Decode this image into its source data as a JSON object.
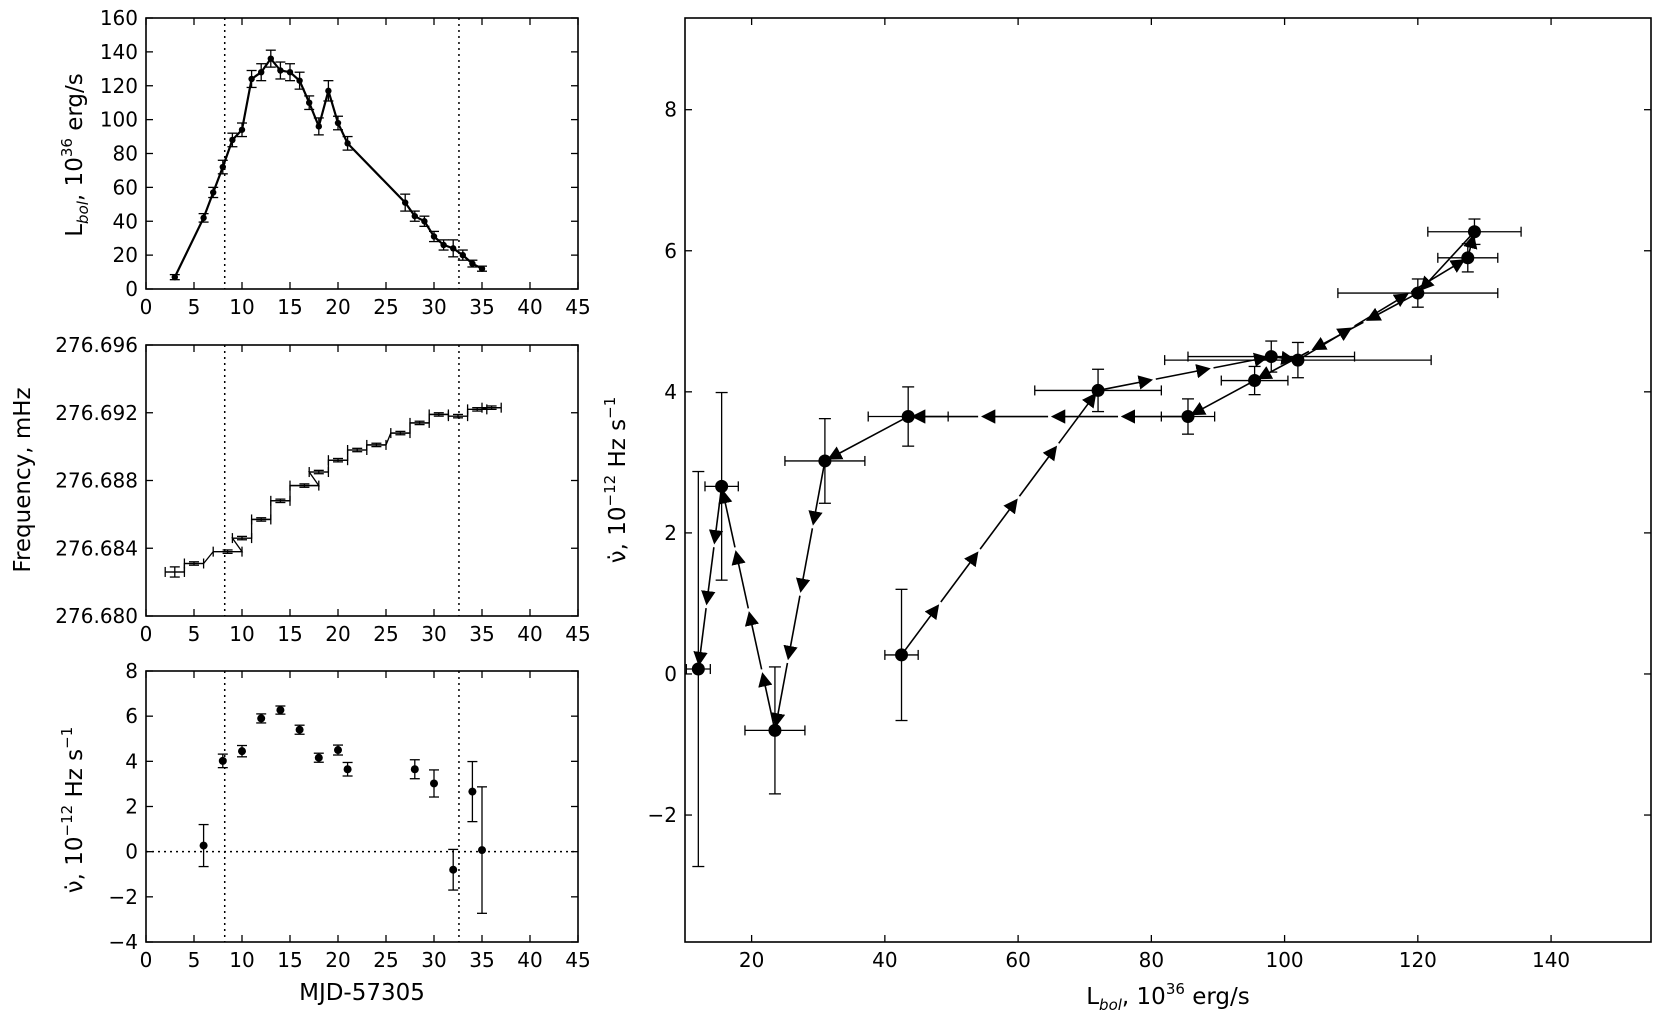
{
  "chart_data": [
    {
      "type": "line",
      "id": "luminosity",
      "xlabel": "",
      "ylabel": "L_bol, 10^36 erg/s",
      "ylabel_parts": {
        "main": "L",
        "sub": "bol",
        "rest": ", 10",
        "sup": "36",
        "tail": " erg/s"
      },
      "xlim": [
        0,
        45
      ],
      "ylim": [
        0,
        160
      ],
      "xticks": [
        0,
        5,
        10,
        15,
        20,
        25,
        30,
        35,
        40,
        45
      ],
      "yticks": [
        0,
        20,
        40,
        60,
        80,
        100,
        120,
        140,
        160
      ],
      "vlines": [
        8.2,
        32.6
      ],
      "x": [
        3,
        6,
        7,
        8,
        9,
        10,
        11,
        12,
        13,
        14,
        15,
        16,
        17,
        18,
        19,
        20,
        21,
        27,
        28,
        29,
        30,
        31,
        32,
        33,
        34,
        35
      ],
      "y": [
        7,
        42,
        57,
        72,
        88,
        94,
        124,
        128,
        136,
        129,
        128,
        123,
        110,
        96,
        117,
        98,
        86,
        51,
        43,
        40,
        31,
        26,
        24,
        20,
        15,
        12
      ],
      "yerr": [
        1.5,
        2.5,
        3,
        4,
        4,
        4,
        5,
        5,
        5,
        5,
        5,
        5,
        4,
        5,
        6,
        4,
        4,
        5,
        3,
        3,
        3,
        3,
        5,
        3,
        2,
        1.5
      ]
    },
    {
      "type": "line",
      "id": "frequency",
      "xlabel": "",
      "ylabel": "Frequency, mHz",
      "xlim": [
        0,
        45
      ],
      "ylim": [
        276.68,
        276.696
      ],
      "xticks": [
        0,
        5,
        10,
        15,
        20,
        25,
        30,
        35,
        40,
        45
      ],
      "yticks": [
        276.68,
        276.684,
        276.688,
        276.692,
        276.696
      ],
      "ytick_labels": [
        "276.680",
        "276.684",
        "276.688",
        "276.692",
        "276.696"
      ],
      "vlines": [
        8.2,
        32.6
      ],
      "x": [
        3,
        5,
        8.5,
        10,
        12,
        14,
        16.5,
        18,
        20,
        22,
        24,
        26.5,
        28.5,
        30.5,
        32.5,
        34.5,
        36
      ],
      "xerr": [
        1,
        1,
        1.5,
        1,
        1,
        1,
        1.5,
        1,
        1,
        1,
        1,
        1,
        1,
        1,
        1,
        1,
        1
      ],
      "y": [
        276.6826,
        276.6831,
        276.6838,
        276.6846,
        276.6857,
        276.6868,
        276.6877,
        276.6885,
        276.6892,
        276.6898,
        276.6901,
        276.6908,
        276.6914,
        276.6919,
        276.6918,
        276.6922,
        276.6923
      ],
      "yerr": [
        0.0003,
        0.0001,
        0.0001,
        0.0001,
        0.0001,
        0.0001,
        0.0001,
        0.0001,
        0.0001,
        0.0001,
        0.0001,
        0.0001,
        0.0001,
        0.0001,
        0.0001,
        0.0001,
        0.0001
      ]
    },
    {
      "type": "scatter",
      "id": "nudot_time",
      "xlabel": "MJD-57305",
      "ylabel": "ν̇, 10^−12 Hz s^−1",
      "ylabel_parts": {
        "main": "ν̇, 10",
        "sup": "−12",
        "rest": " Hz s",
        "sup2": "−1"
      },
      "xlim": [
        0,
        45
      ],
      "ylim": [
        -4,
        8
      ],
      "xticks": [
        0,
        5,
        10,
        15,
        20,
        25,
        30,
        35,
        40,
        45
      ],
      "yticks": [
        -4,
        -2,
        0,
        2,
        4,
        6,
        8
      ],
      "ytick_labels": [
        "−4",
        "−2",
        "0",
        "2",
        "4",
        "6",
        "8"
      ],
      "vlines": [
        8.2,
        32.6
      ],
      "hline": 0,
      "x": [
        6,
        8,
        10,
        12,
        14,
        16,
        18,
        20,
        21,
        28,
        30,
        32,
        34,
        35
      ],
      "y": [
        0.27,
        4.02,
        4.45,
        5.9,
        6.27,
        5.4,
        4.16,
        4.5,
        3.65,
        3.65,
        3.02,
        -0.8,
        2.66,
        0.07
      ],
      "yerr": [
        0.93,
        0.3,
        0.25,
        0.2,
        0.18,
        0.2,
        0.2,
        0.22,
        0.3,
        0.42,
        0.6,
        0.9,
        1.33,
        2.8
      ]
    },
    {
      "type": "scatter",
      "id": "nudot_lbol",
      "xlabel": "L_bol, 10^36 erg/s",
      "xlabel_parts": {
        "main": "L",
        "sub": "bol",
        "rest": ", 10",
        "sup": "36",
        "tail": " erg/s"
      },
      "ylabel": "ν̇, 10^−12 Hz s^−1",
      "ylabel_parts": {
        "main": "ν̇, 10",
        "sup": "−12",
        "rest": " Hz s",
        "sup2": "−1"
      },
      "xlim": [
        10,
        155
      ],
      "ylim": [
        -3.8,
        9.3
      ],
      "xticks": [
        20,
        40,
        60,
        80,
        100,
        120,
        140
      ],
      "yticks": [
        -2,
        0,
        2,
        4,
        6,
        8
      ],
      "ytick_labels": [
        "−2",
        "0",
        "2",
        "4",
        "6",
        "8"
      ],
      "points_in_time_order": [
        {
          "x": 42.5,
          "y": 0.27,
          "xerr": 2.5,
          "yerr": 0.93
        },
        {
          "x": 72,
          "y": 4.02,
          "xerr": 9.5,
          "yerr": 0.3
        },
        {
          "x": 98,
          "y": 4.5,
          "xerr": 12.5,
          "yerr": 0.22
        },
        {
          "x": 102,
          "y": 4.45,
          "xerr": 20,
          "yerr": 0.25
        },
        {
          "x": 127.5,
          "y": 5.9,
          "xerr": 4.5,
          "yerr": 0.2
        },
        {
          "x": 128.5,
          "y": 6.27,
          "xerr": 7,
          "yerr": 0.18
        },
        {
          "x": 120,
          "y": 5.4,
          "xerr": 12,
          "yerr": 0.2
        },
        {
          "x": 95.5,
          "y": 4.16,
          "xerr": 5,
          "yerr": 0.2
        },
        {
          "x": 85.5,
          "y": 3.65,
          "xerr": 4,
          "yerr": 0.25
        },
        {
          "x": 43.5,
          "y": 3.65,
          "xerr": 6,
          "yerr": 0.42
        },
        {
          "x": 31,
          "y": 3.02,
          "xerr": 6,
          "yerr": 0.6
        },
        {
          "x": 23.5,
          "y": -0.8,
          "xerr": 4.5,
          "yerr": 0.9
        },
        {
          "x": 15.5,
          "y": 2.66,
          "xerr": 2.5,
          "yerr": 1.33
        },
        {
          "x": 12,
          "y": 0.07,
          "xerr": 1.8,
          "yerr": 2.8
        }
      ]
    }
  ]
}
